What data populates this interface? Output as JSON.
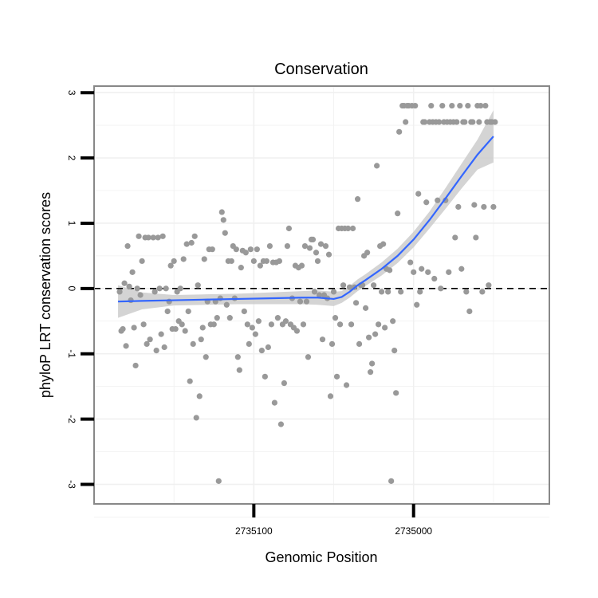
{
  "chart_data": {
    "type": "scatter",
    "title": "Conservation",
    "xlabel": "Genomic Position",
    "ylabel": "phyloP LRT conservation scores",
    "x_axis": {
      "reversed": true,
      "range": [
        2735200,
        2734915
      ],
      "ticks": [
        2735100,
        2735000
      ]
    },
    "y_axis": {
      "range": [
        -3.3,
        3.1
      ],
      "ticks": [
        3,
        2,
        1,
        0,
        -1,
        -2,
        -3
      ]
    },
    "grid": true,
    "reference_line": {
      "y": 0,
      "style": "dashed"
    },
    "colors": {
      "points": "#999999",
      "smooth_line": "#3366ff",
      "ribbon": "#cccccc",
      "frame": "#888888",
      "grid": "#f0f0f0"
    },
    "series": [
      {
        "kind": "points",
        "points": [
          [
            2735184,
            -0.05
          ],
          [
            2735183,
            -0.65
          ],
          [
            2735182,
            -0.62
          ],
          [
            2735181,
            0.08
          ],
          [
            2735180,
            -0.88
          ],
          [
            2735179,
            0.65
          ],
          [
            2735178,
            0.03
          ],
          [
            2735177,
            -0.18
          ],
          [
            2735176,
            0.25
          ],
          [
            2735175,
            -0.6
          ],
          [
            2735174,
            -1.18
          ],
          [
            2735173,
            0.0
          ],
          [
            2735172,
            0.8
          ],
          [
            2735171,
            -0.1
          ],
          [
            2735170,
            0.42
          ],
          [
            2735169,
            -0.55
          ],
          [
            2735168,
            0.78
          ],
          [
            2735167,
            -0.85
          ],
          [
            2735166,
            0.78
          ],
          [
            2735165,
            -0.78
          ],
          [
            2735163,
            0.78
          ],
          [
            2735162,
            -0.05
          ],
          [
            2735161,
            -0.95
          ],
          [
            2735160,
            0.78
          ],
          [
            2735159,
            0.0
          ],
          [
            2735158,
            -0.7
          ],
          [
            2735157,
            0.8
          ],
          [
            2735156,
            -0.9
          ],
          [
            2735155,
            0.0
          ],
          [
            2735154,
            -0.35
          ],
          [
            2735153,
            -0.2
          ],
          [
            2735152,
            0.35
          ],
          [
            2735151,
            -0.62
          ],
          [
            2735150,
            0.42
          ],
          [
            2735149,
            -0.62
          ],
          [
            2735148,
            -0.05
          ],
          [
            2735147,
            -0.5
          ],
          [
            2735146,
            0.0
          ],
          [
            2735145,
            -0.55
          ],
          [
            2735144,
            0.45
          ],
          [
            2735143,
            -0.65
          ],
          [
            2735142,
            0.68
          ],
          [
            2735141,
            -0.35
          ],
          [
            2735140,
            -1.42
          ],
          [
            2735139,
            0.7
          ],
          [
            2735138,
            -0.85
          ],
          [
            2735137,
            0.8
          ],
          [
            2735136,
            -1.98
          ],
          [
            2735135,
            0.05
          ],
          [
            2735134,
            -1.65
          ],
          [
            2735133,
            -0.78
          ],
          [
            2735132,
            -0.6
          ],
          [
            2735131,
            0.45
          ],
          [
            2735130,
            -1.05
          ],
          [
            2735129,
            -0.2
          ],
          [
            2735128,
            0.6
          ],
          [
            2735127,
            -0.55
          ],
          [
            2735126,
            0.6
          ],
          [
            2735125,
            -0.55
          ],
          [
            2735124,
            -0.2
          ],
          [
            2735123,
            -0.45
          ],
          [
            2735122,
            -2.95
          ],
          [
            2735121,
            -0.15
          ],
          [
            2735120,
            1.17
          ],
          [
            2735119,
            1.05
          ],
          [
            2735118,
            0.85
          ],
          [
            2735117,
            -0.25
          ],
          [
            2735116,
            0.42
          ],
          [
            2735115,
            -0.45
          ],
          [
            2735114,
            0.42
          ],
          [
            2735113,
            0.65
          ],
          [
            2735112,
            -0.15
          ],
          [
            2735111,
            0.6
          ],
          [
            2735110,
            -1.05
          ],
          [
            2735109,
            -1.25
          ],
          [
            2735108,
            0.32
          ],
          [
            2735107,
            0.58
          ],
          [
            2735106,
            -0.35
          ],
          [
            2735105,
            0.55
          ],
          [
            2735104,
            -0.55
          ],
          [
            2735103,
            -0.85
          ],
          [
            2735102,
            0.6
          ],
          [
            2735101,
            -0.6
          ],
          [
            2735100,
            0.42
          ],
          [
            2735099,
            -0.7
          ],
          [
            2735098,
            0.6
          ],
          [
            2735097,
            -0.5
          ],
          [
            2735096,
            0.35
          ],
          [
            2735095,
            -0.95
          ],
          [
            2735094,
            0.42
          ],
          [
            2735093,
            -1.35
          ],
          [
            2735092,
            0.42
          ],
          [
            2735091,
            -0.9
          ],
          [
            2735090,
            0.65
          ],
          [
            2735089,
            -0.55
          ],
          [
            2735088,
            0.4
          ],
          [
            2735087,
            -1.75
          ],
          [
            2735086,
            0.4
          ],
          [
            2735085,
            -0.45
          ],
          [
            2735084,
            0.42
          ],
          [
            2735083,
            -2.08
          ],
          [
            2735082,
            -0.55
          ],
          [
            2735081,
            -1.45
          ],
          [
            2735080,
            -0.5
          ],
          [
            2735079,
            0.65
          ],
          [
            2735078,
            0.92
          ],
          [
            2735077,
            -0.55
          ],
          [
            2735076,
            -0.15
          ],
          [
            2735075,
            -0.6
          ],
          [
            2735074,
            0.35
          ],
          [
            2735073,
            -0.65
          ],
          [
            2735072,
            0.32
          ],
          [
            2735071,
            -0.2
          ],
          [
            2735070,
            0.35
          ],
          [
            2735069,
            -0.55
          ],
          [
            2735068,
            0.65
          ],
          [
            2735067,
            -0.2
          ],
          [
            2735066,
            -1.05
          ],
          [
            2735065,
            0.62
          ],
          [
            2735064,
            0.75
          ],
          [
            2735063,
            0.75
          ],
          [
            2735062,
            -0.05
          ],
          [
            2735061,
            0.55
          ],
          [
            2735060,
            0.42
          ],
          [
            2735059,
            -0.1
          ],
          [
            2735058,
            0.68
          ],
          [
            2735057,
            -0.78
          ],
          [
            2735056,
            -0.1
          ],
          [
            2735055,
            0.65
          ],
          [
            2735054,
            -0.15
          ],
          [
            2735053,
            0.52
          ],
          [
            2735052,
            -1.65
          ],
          [
            2735051,
            -0.85
          ],
          [
            2735050,
            -0.05
          ],
          [
            2735049,
            -0.45
          ],
          [
            2735048,
            -1.35
          ],
          [
            2735047,
            0.92
          ],
          [
            2735046,
            -0.55
          ],
          [
            2735045,
            0.92
          ],
          [
            2735044,
            0.05
          ],
          [
            2735043,
            0.92
          ],
          [
            2735042,
            -1.48
          ],
          [
            2735041,
            0.92
          ],
          [
            2735040,
            0.02
          ],
          [
            2735039,
            -0.55
          ],
          [
            2735038,
            0.92
          ],
          [
            2735037,
            0.02
          ],
          [
            2735036,
            -0.22
          ],
          [
            2735035,
            1.37
          ],
          [
            2735034,
            -0.85
          ],
          [
            2735033,
            0.05
          ],
          [
            2735032,
            0.05
          ],
          [
            2735031,
            0.5
          ],
          [
            2735030,
            -0.3
          ],
          [
            2735029,
            0.55
          ],
          [
            2735028,
            -0.75
          ],
          [
            2735027,
            -1.28
          ],
          [
            2735026,
            -1.15
          ],
          [
            2735025,
            0.05
          ],
          [
            2735024,
            -0.7
          ],
          [
            2735023,
            1.88
          ],
          [
            2735022,
            -0.55
          ],
          [
            2735021,
            0.65
          ],
          [
            2735020,
            -0.05
          ],
          [
            2735019,
            0.68
          ],
          [
            2735018,
            -0.6
          ],
          [
            2735017,
            0.3
          ],
          [
            2735016,
            -0.05
          ],
          [
            2735015,
            0.28
          ],
          [
            2735014,
            -2.95
          ],
          [
            2735013,
            -0.5
          ],
          [
            2735012,
            -0.95
          ],
          [
            2735011,
            -1.6
          ],
          [
            2735010,
            1.15
          ],
          [
            2735009,
            2.4
          ],
          [
            2735008,
            -0.05
          ],
          [
            2735007,
            2.8
          ],
          [
            2735006,
            2.8
          ],
          [
            2735005,
            2.55
          ],
          [
            2735004,
            2.8
          ],
          [
            2735003,
            2.8
          ],
          [
            2735002,
            0.4
          ],
          [
            2735001,
            2.8
          ],
          [
            2735000,
            0.25
          ],
          [
            2734999,
            2.8
          ],
          [
            2734998,
            -0.25
          ],
          [
            2734997,
            1.45
          ],
          [
            2734996,
            -0.05
          ],
          [
            2734995,
            0.3
          ],
          [
            2734994,
            2.55
          ],
          [
            2734993,
            2.55
          ],
          [
            2734992,
            1.32
          ],
          [
            2734991,
            0.25
          ],
          [
            2734990,
            2.55
          ],
          [
            2734989,
            2.8
          ],
          [
            2734988,
            2.55
          ],
          [
            2734987,
            0.15
          ],
          [
            2734986,
            2.55
          ],
          [
            2734985,
            1.35
          ],
          [
            2734984,
            2.55
          ],
          [
            2734983,
            0.0
          ],
          [
            2734982,
            2.8
          ],
          [
            2734981,
            2.55
          ],
          [
            2734980,
            1.35
          ],
          [
            2734979,
            2.55
          ],
          [
            2734978,
            0.25
          ],
          [
            2734977,
            2.55
          ],
          [
            2734976,
            2.8
          ],
          [
            2734975,
            2.55
          ],
          [
            2734974,
            0.78
          ],
          [
            2734973,
            2.55
          ],
          [
            2734972,
            1.25
          ],
          [
            2734971,
            2.8
          ],
          [
            2734970,
            0.3
          ],
          [
            2734969,
            2.55
          ],
          [
            2734968,
            2.55
          ],
          [
            2734967,
            -0.05
          ],
          [
            2734966,
            2.8
          ],
          [
            2734965,
            -0.35
          ],
          [
            2734964,
            2.55
          ],
          [
            2734963,
            2.55
          ],
          [
            2734962,
            1.28
          ],
          [
            2734961,
            0.78
          ],
          [
            2734960,
            2.8
          ],
          [
            2734959,
            2.55
          ],
          [
            2734958,
            2.8
          ],
          [
            2734957,
            -0.05
          ],
          [
            2734956,
            1.25
          ],
          [
            2734955,
            2.8
          ],
          [
            2734954,
            2.55
          ],
          [
            2734953,
            0.05
          ],
          [
            2734952,
            2.55
          ],
          [
            2734951,
            2.55
          ],
          [
            2734950,
            1.25
          ],
          [
            2734949,
            2.55
          ]
        ]
      },
      {
        "kind": "smooth",
        "points": [
          [
            2735185,
            -0.2
          ],
          [
            2735170,
            -0.19
          ],
          [
            2735150,
            -0.18
          ],
          [
            2735130,
            -0.17
          ],
          [
            2735110,
            -0.16
          ],
          [
            2735090,
            -0.15
          ],
          [
            2735070,
            -0.14
          ],
          [
            2735060,
            -0.14
          ],
          [
            2735050,
            -0.16
          ],
          [
            2735045,
            -0.13
          ],
          [
            2735040,
            -0.05
          ],
          [
            2735035,
            0.05
          ],
          [
            2735030,
            0.13
          ],
          [
            2735020,
            0.3
          ],
          [
            2735010,
            0.5
          ],
          [
            2735000,
            0.75
          ],
          [
            2734990,
            1.05
          ],
          [
            2734980,
            1.38
          ],
          [
            2734970,
            1.72
          ],
          [
            2734960,
            2.05
          ],
          [
            2734950,
            2.33
          ]
        ],
        "ribbon_low": [
          [
            2735185,
            -0.45
          ],
          [
            2735170,
            -0.32
          ],
          [
            2735150,
            -0.26
          ],
          [
            2735130,
            -0.25
          ],
          [
            2735110,
            -0.24
          ],
          [
            2735090,
            -0.24
          ],
          [
            2735070,
            -0.24
          ],
          [
            2735060,
            -0.25
          ],
          [
            2735050,
            -0.27
          ],
          [
            2735045,
            -0.22
          ],
          [
            2735040,
            -0.14
          ],
          [
            2735035,
            -0.04
          ],
          [
            2735030,
            0.04
          ],
          [
            2735020,
            0.2
          ],
          [
            2735010,
            0.39
          ],
          [
            2735000,
            0.63
          ],
          [
            2734990,
            0.92
          ],
          [
            2734980,
            1.22
          ],
          [
            2734970,
            1.53
          ],
          [
            2734960,
            1.82
          ],
          [
            2734950,
            1.93
          ]
        ],
        "ribbon_high": [
          [
            2735185,
            0.05
          ],
          [
            2735170,
            -0.06
          ],
          [
            2735150,
            -0.1
          ],
          [
            2735130,
            -0.09
          ],
          [
            2735110,
            -0.08
          ],
          [
            2735090,
            -0.06
          ],
          [
            2735070,
            -0.04
          ],
          [
            2735060,
            -0.03
          ],
          [
            2735050,
            -0.05
          ],
          [
            2735045,
            -0.04
          ],
          [
            2735040,
            0.04
          ],
          [
            2735035,
            0.14
          ],
          [
            2735030,
            0.22
          ],
          [
            2735020,
            0.4
          ],
          [
            2735010,
            0.61
          ],
          [
            2735000,
            0.87
          ],
          [
            2734990,
            1.18
          ],
          [
            2734980,
            1.54
          ],
          [
            2734970,
            1.91
          ],
          [
            2734960,
            2.28
          ],
          [
            2734950,
            2.73
          ]
        ]
      }
    ]
  }
}
